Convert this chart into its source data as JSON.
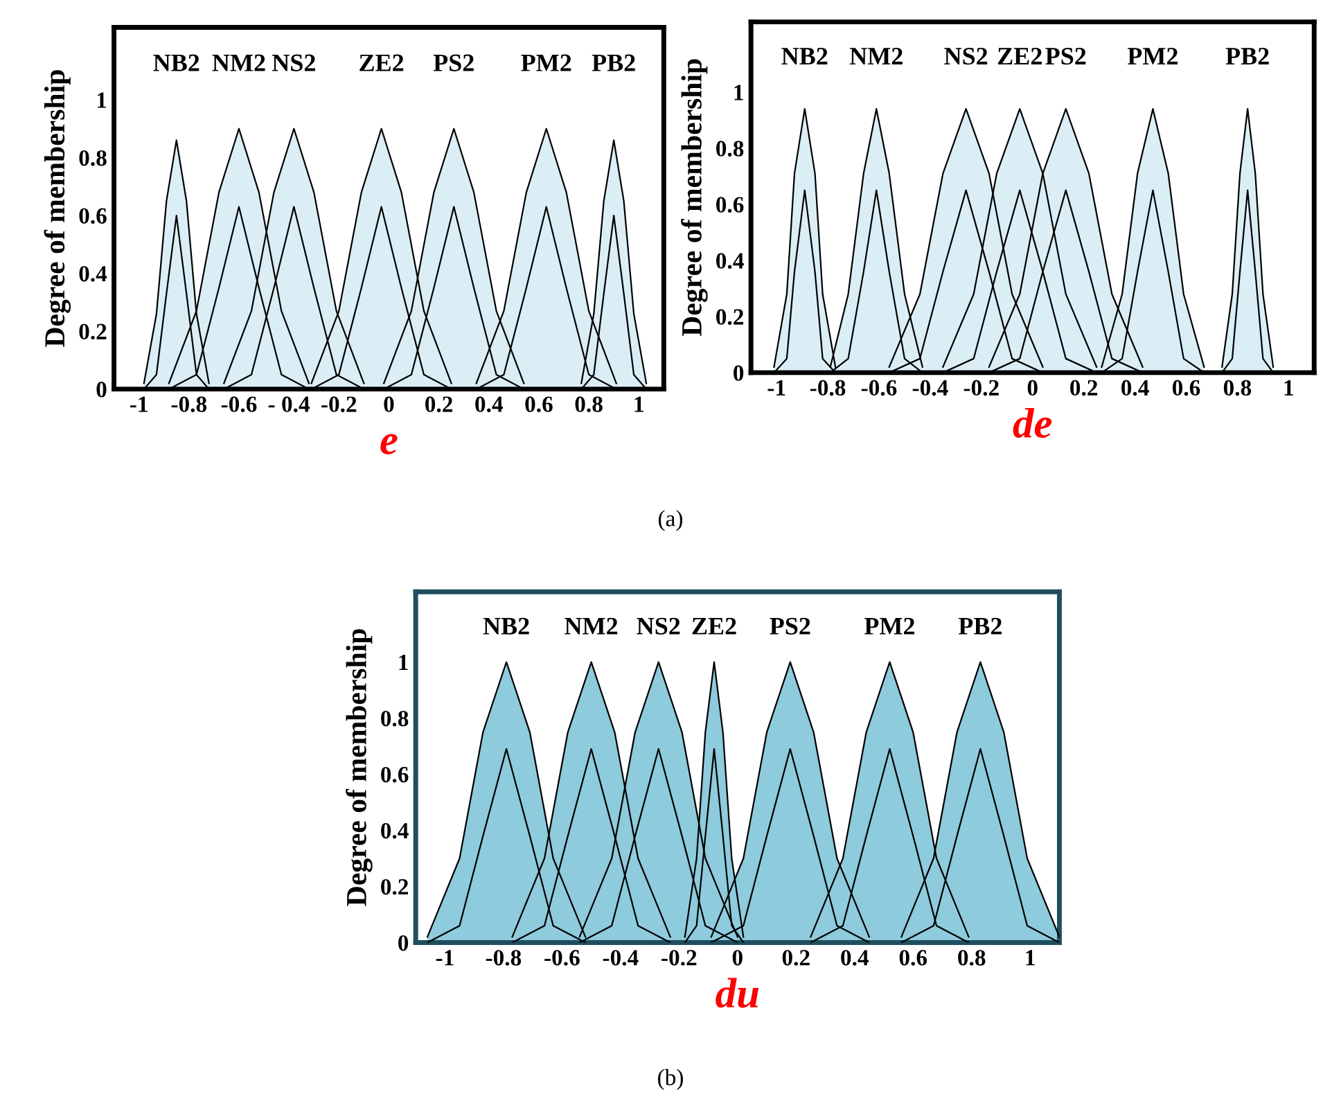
{
  "chart_data": [
    {
      "type": "area",
      "xlabel": "e",
      "ylabel": "Degree of membership",
      "annotations": [
        "(a)"
      ],
      "xlim": [
        -1.1,
        1.1
      ],
      "ylim": [
        0,
        1.25
      ],
      "xticks": [
        -1,
        -0.8,
        -0.6,
        {
          "value": -0.4,
          "label": "- 0.4"
        },
        -0.2,
        0,
        0.2,
        0.4,
        0.6,
        0.8,
        1
      ],
      "yticks": [
        0,
        0.2,
        0.4,
        0.6,
        0.8,
        1
      ],
      "series": [
        {
          "name": "NB2",
          "color": "#dbeef5",
          "x": [
            -0.98,
            -0.93,
            -0.89,
            -0.85,
            -0.81,
            -0.77,
            -0.72
          ],
          "values": [
            0.02,
            0.26,
            0.65,
            0.86,
            0.65,
            0.26,
            0.02
          ]
        },
        {
          "type": "line",
          "color": "#000000",
          "x": [
            -0.98,
            -0.93,
            -0.89,
            -0.85,
            -0.81,
            -0.77,
            -0.72
          ],
          "values": [
            0,
            0.05,
            0.33,
            0.6,
            0.33,
            0.05,
            0
          ]
        },
        {
          "name": "NM2",
          "color": "#dbeef5",
          "x": [
            -0.88,
            -0.77,
            -0.68,
            -0.6,
            -0.52,
            -0.43,
            -0.32
          ],
          "values": [
            0.02,
            0.27,
            0.68,
            0.9,
            0.68,
            0.27,
            0.02
          ]
        },
        {
          "type": "line",
          "color": "#000000",
          "x": [
            -0.88,
            -0.77,
            -0.68,
            -0.6,
            -0.52,
            -0.43,
            -0.32
          ],
          "values": [
            0,
            0.05,
            0.35,
            0.63,
            0.35,
            0.05,
            0
          ]
        },
        {
          "name": "NS2",
          "color": "#dbeef5",
          "x": [
            -0.66,
            -0.55,
            -0.46,
            -0.38,
            -0.3,
            -0.21,
            -0.1
          ],
          "values": [
            0.02,
            0.27,
            0.68,
            0.9,
            0.68,
            0.27,
            0.02
          ]
        },
        {
          "type": "line",
          "color": "#000000",
          "x": [
            -0.66,
            -0.55,
            -0.46,
            -0.38,
            -0.3,
            -0.21,
            -0.1
          ],
          "values": [
            0,
            0.05,
            0.35,
            0.63,
            0.35,
            0.05,
            0
          ]
        },
        {
          "name": "ZE2",
          "color": "#dbeef5",
          "x": [
            -0.31,
            -0.2,
            -0.11,
            -0.03,
            0.05,
            0.14,
            0.25
          ],
          "values": [
            0.02,
            0.27,
            0.68,
            0.9,
            0.68,
            0.27,
            0.02
          ]
        },
        {
          "type": "line",
          "color": "#000000",
          "x": [
            -0.31,
            -0.2,
            -0.11,
            -0.03,
            0.05,
            0.14,
            0.25
          ],
          "values": [
            0,
            0.05,
            0.35,
            0.63,
            0.35,
            0.05,
            0
          ]
        },
        {
          "name": "PS2",
          "color": "#dbeef5",
          "x": [
            -0.02,
            0.09,
            0.18,
            0.26,
            0.34,
            0.43,
            0.54
          ],
          "values": [
            0.02,
            0.27,
            0.68,
            0.9,
            0.68,
            0.27,
            0.02
          ]
        },
        {
          "type": "line",
          "color": "#000000",
          "x": [
            -0.02,
            0.09,
            0.18,
            0.26,
            0.34,
            0.43,
            0.54
          ],
          "values": [
            0,
            0.05,
            0.35,
            0.63,
            0.35,
            0.05,
            0
          ]
        },
        {
          "name": "PM2",
          "color": "#dbeef5",
          "x": [
            0.35,
            0.46,
            0.55,
            0.63,
            0.71,
            0.8,
            0.91
          ],
          "values": [
            0.02,
            0.27,
            0.68,
            0.9,
            0.68,
            0.27,
            0.02
          ]
        },
        {
          "type": "line",
          "color": "#000000",
          "x": [
            0.35,
            0.46,
            0.55,
            0.63,
            0.71,
            0.8,
            0.91
          ],
          "values": [
            0,
            0.05,
            0.35,
            0.63,
            0.35,
            0.05,
            0
          ]
        },
        {
          "name": "PB2",
          "color": "#dbeef5",
          "x": [
            0.77,
            0.82,
            0.86,
            0.9,
            0.94,
            0.98,
            1.03
          ],
          "values": [
            0.02,
            0.26,
            0.65,
            0.86,
            0.65,
            0.26,
            0.02
          ]
        },
        {
          "type": "line",
          "color": "#000000",
          "x": [
            0.77,
            0.82,
            0.86,
            0.9,
            0.94,
            0.98,
            1.03
          ],
          "values": [
            0,
            0.05,
            0.33,
            0.6,
            0.33,
            0.05,
            0
          ]
        }
      ]
    },
    {
      "type": "area",
      "xlabel": "de",
      "ylabel": "Degree of membership",
      "xlim": [
        -1.1,
        1.1
      ],
      "ylim": [
        0,
        1.25
      ],
      "xticks": [
        -1,
        -0.8,
        -0.6,
        -0.4,
        -0.2,
        0,
        0.2,
        0.4,
        0.6,
        0.8,
        1
      ],
      "yticks": [
        0,
        0.2,
        0.4,
        0.6,
        0.8,
        1
      ],
      "series": [
        {
          "name": "NB2",
          "color": "#dbeef5",
          "x": [
            -1.01,
            -0.96,
            -0.93,
            -0.89,
            -0.85,
            -0.82,
            -0.77
          ],
          "values": [
            0.02,
            0.28,
            0.71,
            0.94,
            0.71,
            0.28,
            0.02
          ]
        },
        {
          "type": "line",
          "color": "#000000",
          "x": [
            -1.01,
            -0.96,
            -0.93,
            -0.89,
            -0.85,
            -0.82,
            -0.77
          ],
          "values": [
            0,
            0.05,
            0.36,
            0.65,
            0.36,
            0.05,
            0
          ]
        },
        {
          "name": "NM2",
          "color": "#dbeef5",
          "x": [
            -0.79,
            -0.72,
            -0.66,
            -0.61,
            -0.56,
            -0.5,
            -0.43
          ],
          "values": [
            0.02,
            0.28,
            0.71,
            0.94,
            0.71,
            0.28,
            0.02
          ]
        },
        {
          "type": "line",
          "color": "#000000",
          "x": [
            -0.79,
            -0.72,
            -0.66,
            -0.61,
            -0.56,
            -0.5,
            -0.43
          ],
          "values": [
            0,
            0.05,
            0.36,
            0.65,
            0.36,
            0.05,
            0
          ]
        },
        {
          "name": "NS2",
          "color": "#dbeef5",
          "x": [
            -0.56,
            -0.44,
            -0.35,
            -0.26,
            -0.17,
            -0.08,
            0.04
          ],
          "values": [
            0.02,
            0.28,
            0.71,
            0.94,
            0.71,
            0.28,
            0.02
          ]
        },
        {
          "type": "line",
          "color": "#000000",
          "x": [
            -0.56,
            -0.44,
            -0.35,
            -0.26,
            -0.17,
            -0.08,
            0.04
          ],
          "values": [
            0,
            0.05,
            0.36,
            0.65,
            0.36,
            0.05,
            0
          ]
        },
        {
          "name": "ZE2",
          "color": "#dbeef5",
          "x": [
            -0.35,
            -0.23,
            -0.14,
            -0.05,
            0.04,
            0.13,
            0.25
          ],
          "values": [
            0.02,
            0.28,
            0.71,
            0.94,
            0.71,
            0.28,
            0.02
          ]
        },
        {
          "type": "line",
          "color": "#000000",
          "x": [
            -0.35,
            -0.23,
            -0.14,
            -0.05,
            0.04,
            0.13,
            0.25
          ],
          "values": [
            0,
            0.05,
            0.36,
            0.65,
            0.36,
            0.05,
            0
          ]
        },
        {
          "name": "PS2",
          "color": "#dbeef5",
          "x": [
            -0.17,
            -0.05,
            0.04,
            0.13,
            0.22,
            0.31,
            0.43
          ],
          "values": [
            0.02,
            0.28,
            0.71,
            0.94,
            0.71,
            0.28,
            0.02
          ]
        },
        {
          "type": "line",
          "color": "#000000",
          "x": [
            -0.17,
            -0.05,
            0.04,
            0.13,
            0.22,
            0.31,
            0.43
          ],
          "values": [
            0,
            0.05,
            0.36,
            0.65,
            0.36,
            0.05,
            0
          ]
        },
        {
          "name": "PM2",
          "color": "#dbeef5",
          "x": [
            0.27,
            0.35,
            0.41,
            0.47,
            0.53,
            0.59,
            0.67
          ],
          "values": [
            0.02,
            0.28,
            0.71,
            0.94,
            0.71,
            0.28,
            0.02
          ]
        },
        {
          "type": "line",
          "color": "#000000",
          "x": [
            0.27,
            0.35,
            0.41,
            0.47,
            0.53,
            0.59,
            0.67
          ],
          "values": [
            0,
            0.05,
            0.36,
            0.65,
            0.36,
            0.05,
            0
          ]
        },
        {
          "name": "PB2",
          "color": "#dbeef5",
          "x": [
            0.74,
            0.78,
            0.81,
            0.84,
            0.87,
            0.9,
            0.94
          ],
          "values": [
            0.02,
            0.28,
            0.71,
            0.94,
            0.71,
            0.28,
            0.02
          ]
        },
        {
          "type": "line",
          "color": "#000000",
          "x": [
            0.74,
            0.78,
            0.81,
            0.84,
            0.87,
            0.9,
            0.94
          ],
          "values": [
            0,
            0.05,
            0.36,
            0.65,
            0.36,
            0.05,
            0
          ]
        }
      ]
    },
    {
      "type": "area",
      "xlabel": "du",
      "ylabel": "Degree of membership",
      "annotations": [
        "(b)"
      ],
      "xlim": [
        -1.1,
        1.1
      ],
      "ylim": [
        0,
        1.25
      ],
      "xticks": [
        -1,
        -0.8,
        -0.6,
        -0.4,
        -0.2,
        0,
        0.2,
        0.4,
        0.6,
        0.8,
        1
      ],
      "yticks": [
        0,
        0.2,
        0.4,
        0.6,
        0.8,
        1
      ],
      "series": [
        {
          "name": "NB2",
          "color": "#8ecbdc",
          "x": [
            -1.06,
            -0.95,
            -0.87,
            -0.79,
            -0.71,
            -0.63,
            -0.52
          ],
          "values": [
            0.02,
            0.3,
            0.75,
            1,
            0.75,
            0.3,
            0.02
          ]
        },
        {
          "type": "line",
          "color": "#000000",
          "x": [
            -1.06,
            -0.95,
            -0.87,
            -0.79,
            -0.71,
            -0.63,
            -0.52
          ],
          "values": [
            0,
            0.06,
            0.38,
            0.69,
            0.38,
            0.06,
            0
          ]
        },
        {
          "name": "NM2",
          "color": "#8ecbdc",
          "x": [
            -0.77,
            -0.66,
            -0.58,
            -0.5,
            -0.42,
            -0.34,
            -0.23
          ],
          "values": [
            0.02,
            0.3,
            0.75,
            1,
            0.75,
            0.3,
            0.02
          ]
        },
        {
          "type": "line",
          "color": "#000000",
          "x": [
            -0.77,
            -0.66,
            -0.58,
            -0.5,
            -0.42,
            -0.34,
            -0.23
          ],
          "values": [
            0,
            0.06,
            0.38,
            0.69,
            0.38,
            0.06,
            0
          ]
        },
        {
          "name": "NS2",
          "color": "#8ecbdc",
          "x": [
            -0.54,
            -0.43,
            -0.35,
            -0.27,
            -0.19,
            -0.11,
            0
          ],
          "values": [
            0.02,
            0.3,
            0.75,
            1,
            0.75,
            0.3,
            0.02
          ]
        },
        {
          "type": "line",
          "color": "#000000",
          "x": [
            -0.54,
            -0.43,
            -0.35,
            -0.27,
            -0.19,
            -0.11,
            0
          ],
          "values": [
            0,
            0.06,
            0.38,
            0.69,
            0.38,
            0.06,
            0
          ]
        },
        {
          "name": "ZE2",
          "color": "#8ecbdc",
          "x": [
            -0.18,
            -0.14,
            -0.11,
            -0.08,
            -0.05,
            -0.02,
            0.02
          ],
          "values": [
            0.02,
            0.3,
            0.75,
            1,
            0.75,
            0.3,
            0.02
          ]
        },
        {
          "type": "line",
          "color": "#000000",
          "x": [
            -0.18,
            -0.14,
            -0.11,
            -0.08,
            -0.05,
            -0.02,
            0.02
          ],
          "values": [
            0,
            0.06,
            0.38,
            0.69,
            0.38,
            0.06,
            0
          ]
        },
        {
          "name": "PS2",
          "color": "#8ecbdc",
          "x": [
            -0.09,
            0.02,
            0.1,
            0.18,
            0.26,
            0.34,
            0.45
          ],
          "values": [
            0.02,
            0.3,
            0.75,
            1,
            0.75,
            0.3,
            0.02
          ]
        },
        {
          "type": "line",
          "color": "#000000",
          "x": [
            -0.09,
            0.02,
            0.1,
            0.18,
            0.26,
            0.34,
            0.45
          ],
          "values": [
            0,
            0.06,
            0.38,
            0.69,
            0.38,
            0.06,
            0
          ]
        },
        {
          "name": "PM2",
          "color": "#8ecbdc",
          "x": [
            0.25,
            0.36,
            0.44,
            0.52,
            0.6,
            0.68,
            0.79
          ],
          "values": [
            0.02,
            0.3,
            0.75,
            1,
            0.75,
            0.3,
            0.02
          ]
        },
        {
          "type": "line",
          "color": "#000000",
          "x": [
            0.25,
            0.36,
            0.44,
            0.52,
            0.6,
            0.68,
            0.79
          ],
          "values": [
            0,
            0.06,
            0.38,
            0.69,
            0.38,
            0.06,
            0
          ]
        },
        {
          "name": "PB2",
          "color": "#8ecbdc",
          "x": [
            0.56,
            0.67,
            0.75,
            0.83,
            0.91,
            0.99,
            1.1
          ],
          "values": [
            0.02,
            0.3,
            0.75,
            1,
            0.75,
            0.3,
            0.02
          ]
        },
        {
          "type": "line",
          "color": "#000000",
          "x": [
            0.56,
            0.67,
            0.75,
            0.83,
            0.91,
            0.99,
            1.1
          ],
          "values": [
            0,
            0.06,
            0.38,
            0.69,
            0.38,
            0.06,
            0
          ]
        }
      ]
    }
  ]
}
